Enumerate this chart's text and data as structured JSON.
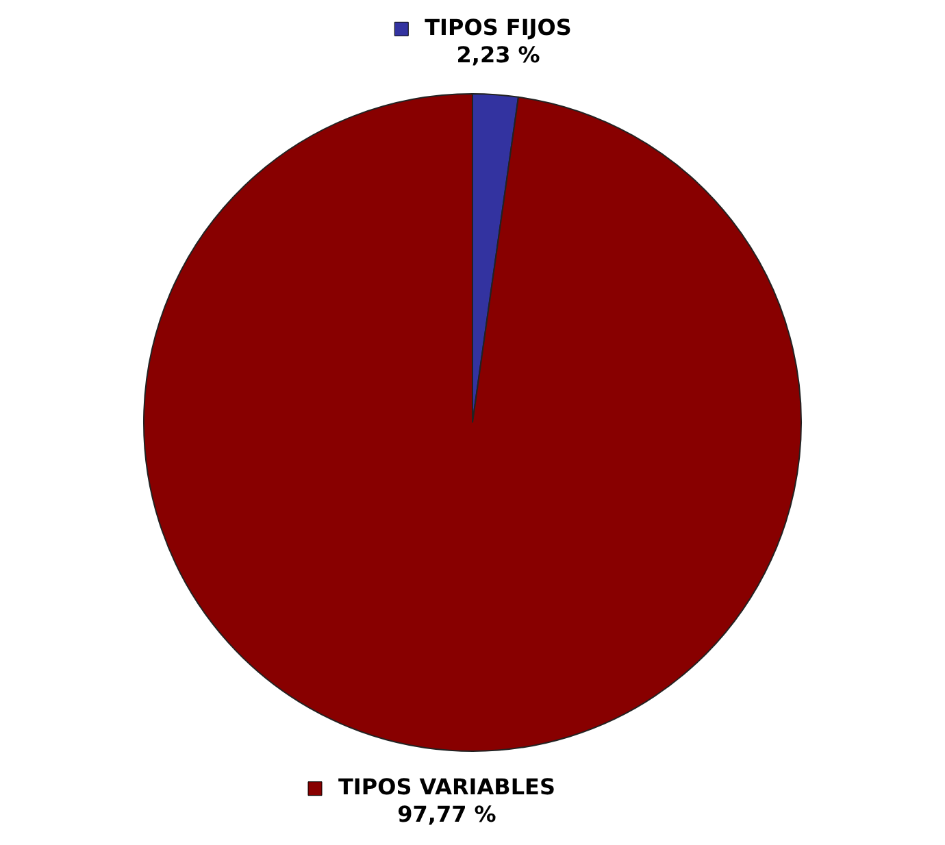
{
  "chart_data": {
    "type": "pie",
    "categories": [
      "TIPOS FIJOS",
      "TIPOS VARIABLES"
    ],
    "values": [
      2.23,
      97.77
    ],
    "colors": [
      "#3333a0",
      "#880000"
    ],
    "value_labels": [
      "2,23 %",
      "97,77 %"
    ],
    "legend": "top"
  }
}
